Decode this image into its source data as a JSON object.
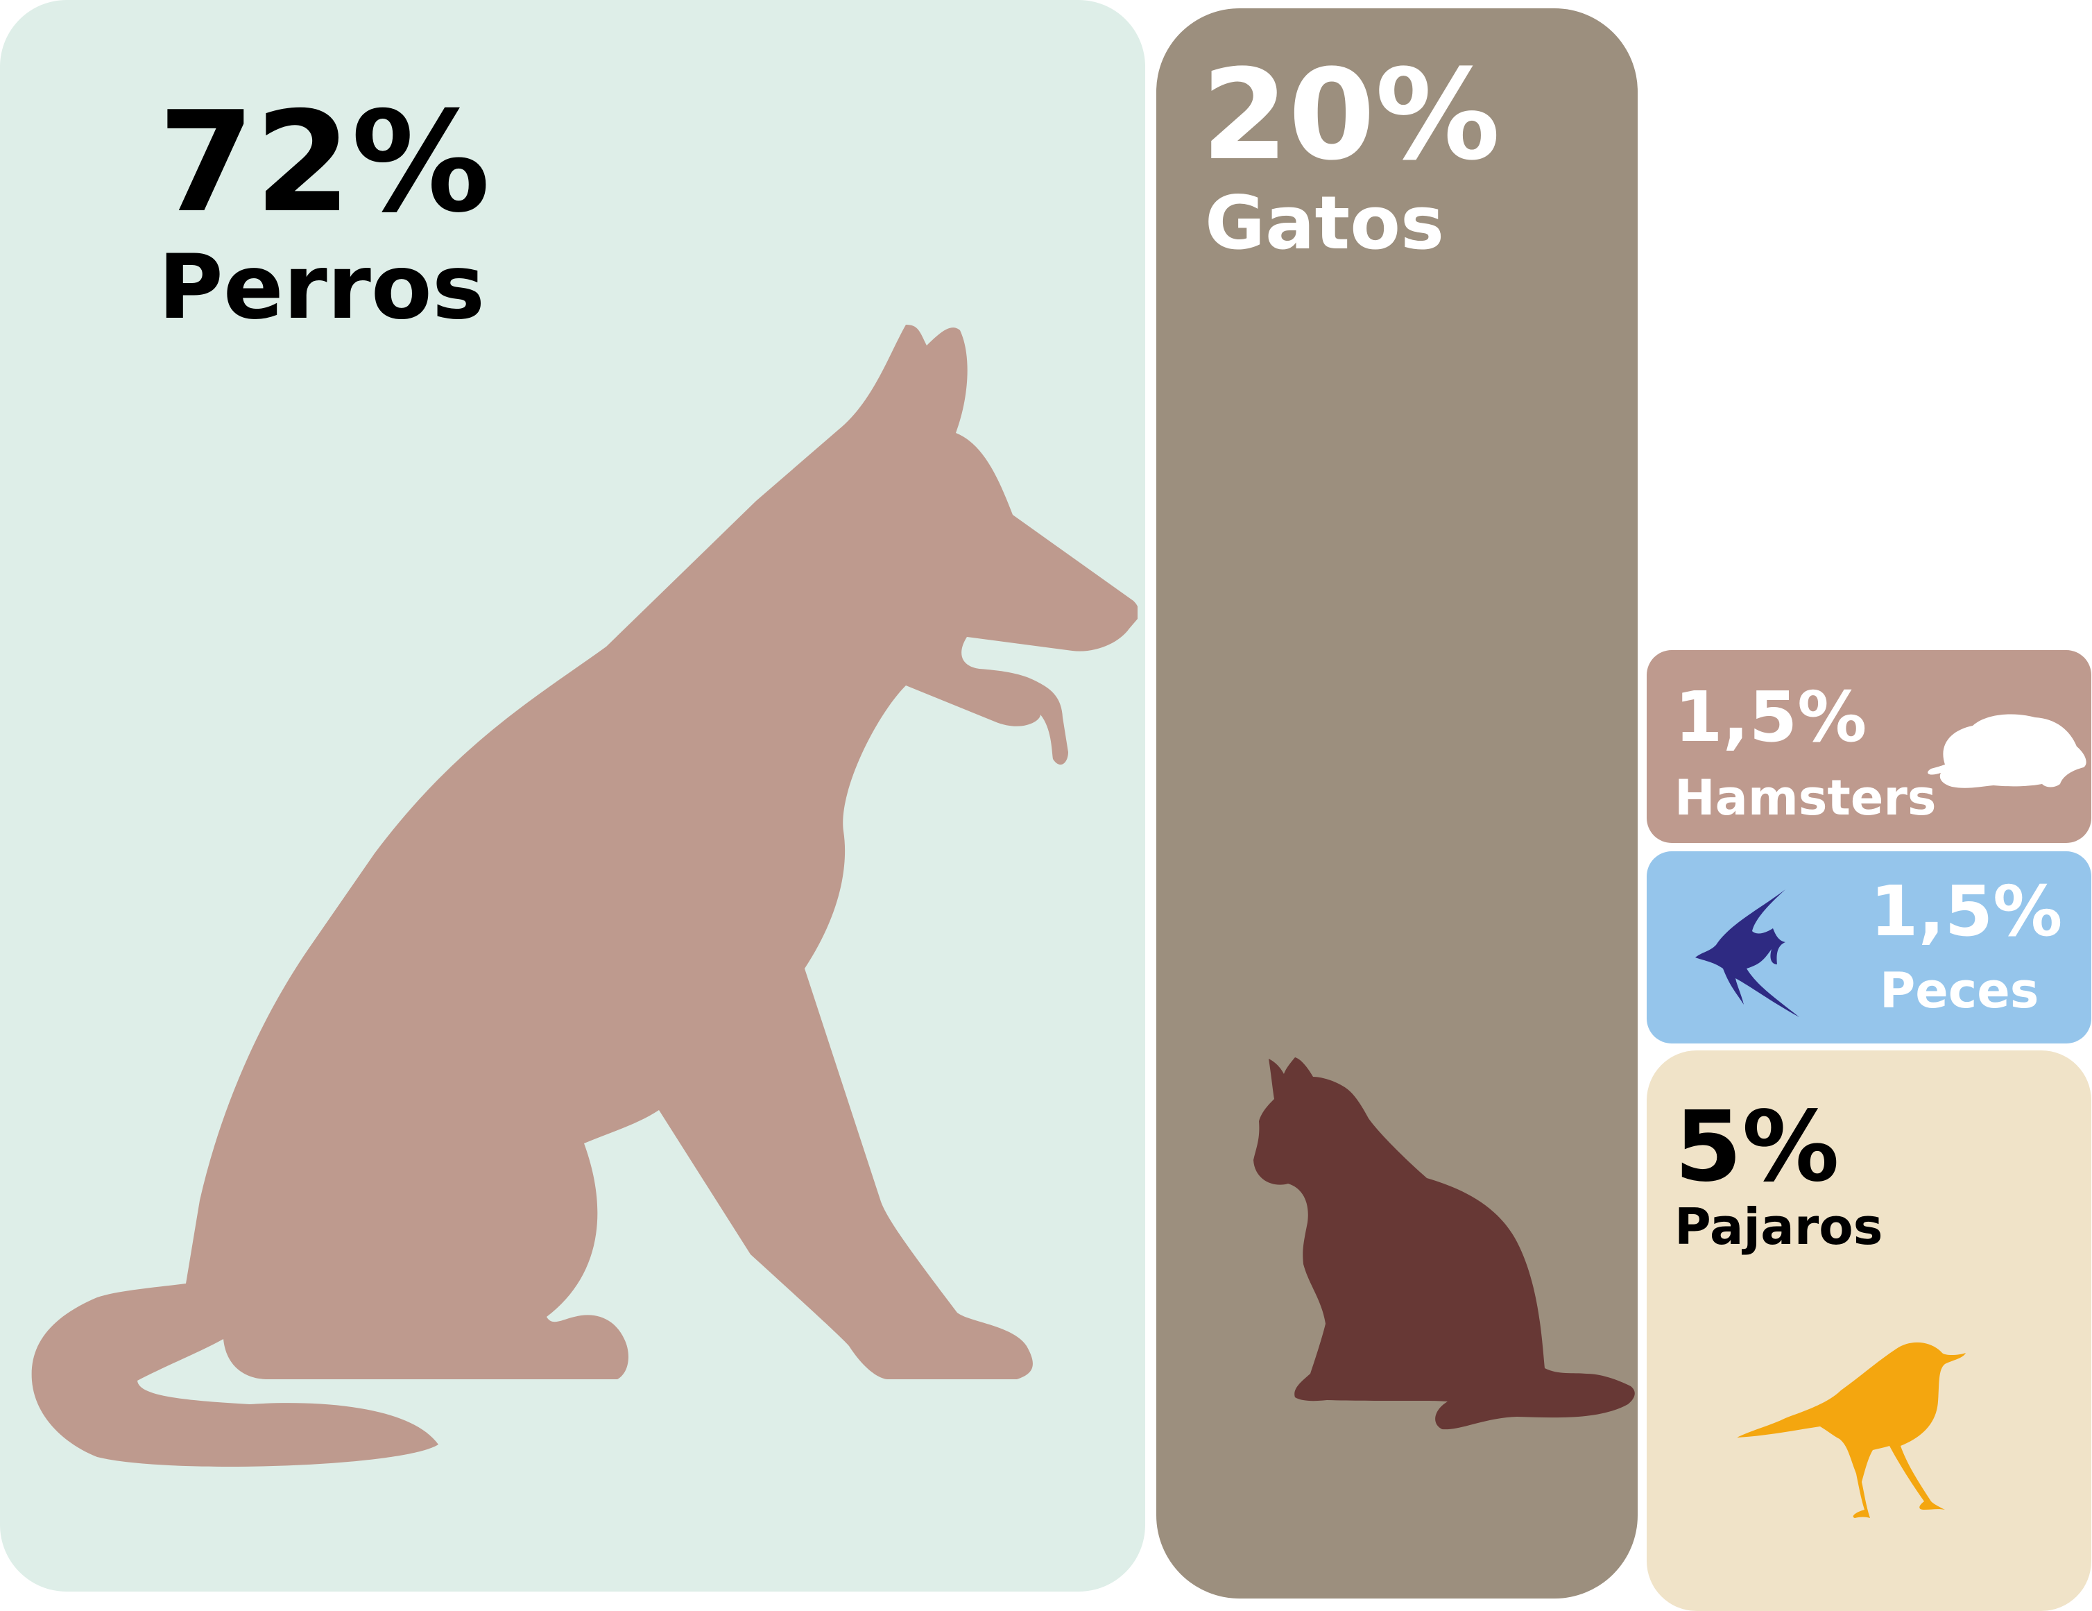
{
  "chart_data": {
    "type": "treemap",
    "title": "",
    "categories": [
      "Perros",
      "Gatos",
      "Hamsters",
      "Peces",
      "Pajaros"
    ],
    "values": [
      72,
      20,
      1.5,
      1.5,
      5
    ],
    "labels": [
      "72%",
      "20%",
      "1,5%",
      "1,5%",
      "5%"
    ],
    "unit": "%"
  },
  "items": [
    {
      "name": "Perros",
      "value": 72,
      "pct": "72%",
      "bg": "#deeee8",
      "fg": "#000000",
      "icon": "dog-icon",
      "icon_color": "#be9a8e"
    },
    {
      "name": "Gatos",
      "value": 20,
      "pct": "20%",
      "bg": "#9c8f7e",
      "fg": "#ffffff",
      "icon": "cat-icon",
      "icon_color": "#673835"
    },
    {
      "name": "Hamsters",
      "value": 1.5,
      "pct": "1,5%",
      "bg": "#be9a8e",
      "fg": "#ffffff",
      "icon": "hamster-icon",
      "icon_color": "#ffffff"
    },
    {
      "name": "Peces",
      "value": 1.5,
      "pct": "1,5%",
      "bg": "#95c5eb",
      "fg": "#ffffff",
      "icon": "fish-icon",
      "icon_color": "#2e2a82"
    },
    {
      "name": "Pajaros",
      "value": 5,
      "pct": "5%",
      "bg": "#f0e3c8",
      "fg": "#000000",
      "icon": "bird-icon",
      "icon_color": "#f4a60f"
    }
  ]
}
